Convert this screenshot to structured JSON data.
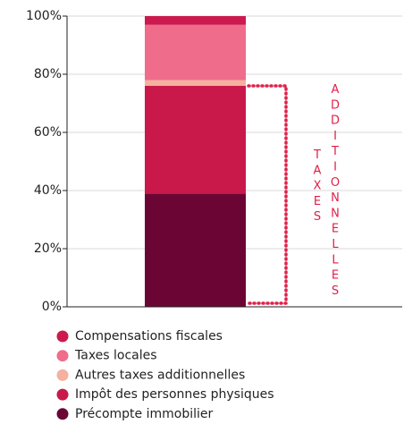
{
  "chart_data": {
    "type": "stacked_bar",
    "categories": [
      null
    ],
    "series": [
      {
        "name": "Précompte immobilier",
        "color": "#6b0634",
        "values": [
          39
        ]
      },
      {
        "name": "Impôt des personnes physiques",
        "color": "#c8194a",
        "values": [
          37
        ]
      },
      {
        "name": "Autres taxes additionnelles",
        "color": "#f5b0a0",
        "values": [
          2
        ]
      },
      {
        "name": "Taxes locales",
        "color": "#ef6d8a",
        "values": [
          19
        ]
      },
      {
        "name": "Compensations fiscales",
        "color": "#cc1a4e",
        "values": [
          3
        ]
      }
    ],
    "ylim": [
      0,
      100
    ],
    "yticks": [
      {
        "value": 0,
        "label": "0%"
      },
      {
        "value": 20,
        "label": "20%"
      },
      {
        "value": 40,
        "label": "40%"
      },
      {
        "value": 60,
        "label": "60%"
      },
      {
        "value": 80,
        "label": "80%"
      },
      {
        "value": 100,
        "label": "100%"
      }
    ],
    "grid": true,
    "annotations": [
      "TAXES",
      "ADDITIONNELLES"
    ],
    "annotation_color": "#e0204a"
  }
}
